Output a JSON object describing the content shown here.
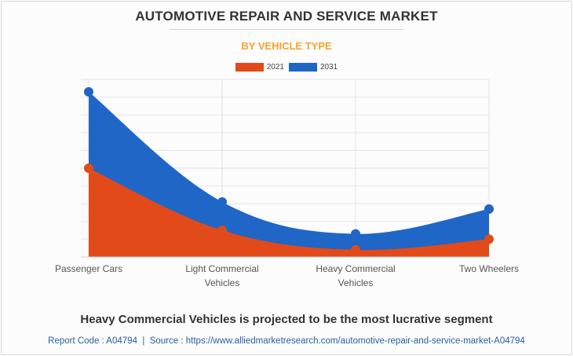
{
  "page": {
    "title": "AUTOMOTIVE REPAIR AND SERVICE MARKET",
    "subtitle": "BY VEHICLE TYPE",
    "headline": "Heavy Commercial Vehicles is projected to be the most lucrative segment",
    "report_code_label": "Report Code : A04794",
    "separator": "|",
    "source_label": "Source : https://www.alliedmarketresearch.com/automotive-repair-and-service-market-A04794"
  },
  "colors": {
    "series_2021": "#e24a1a",
    "series_2031": "#1f66c7",
    "grid": "#e4e4e4",
    "axis": "#cccccc"
  },
  "chart_data": {
    "type": "area",
    "title": "AUTOMOTIVE REPAIR AND SERVICE MARKET",
    "subtitle": "BY VEHICLE TYPE",
    "categories": [
      [
        "Passenger Cars"
      ],
      [
        "Light Commercial",
        "Vehicles"
      ],
      [
        "Heavy Commercial",
        "Vehicles"
      ],
      [
        "Two Wheelers"
      ]
    ],
    "series": [
      {
        "name": "2021",
        "values": [
          50,
          15,
          4,
          10
        ]
      },
      {
        "name": "2031",
        "values": [
          93,
          31,
          13,
          27
        ]
      }
    ],
    "ylim": [
      0,
      100
    ],
    "y_gridlines": 10,
    "stacked": false,
    "legend_position": "top",
    "xlabel": "",
    "ylabel": ""
  }
}
